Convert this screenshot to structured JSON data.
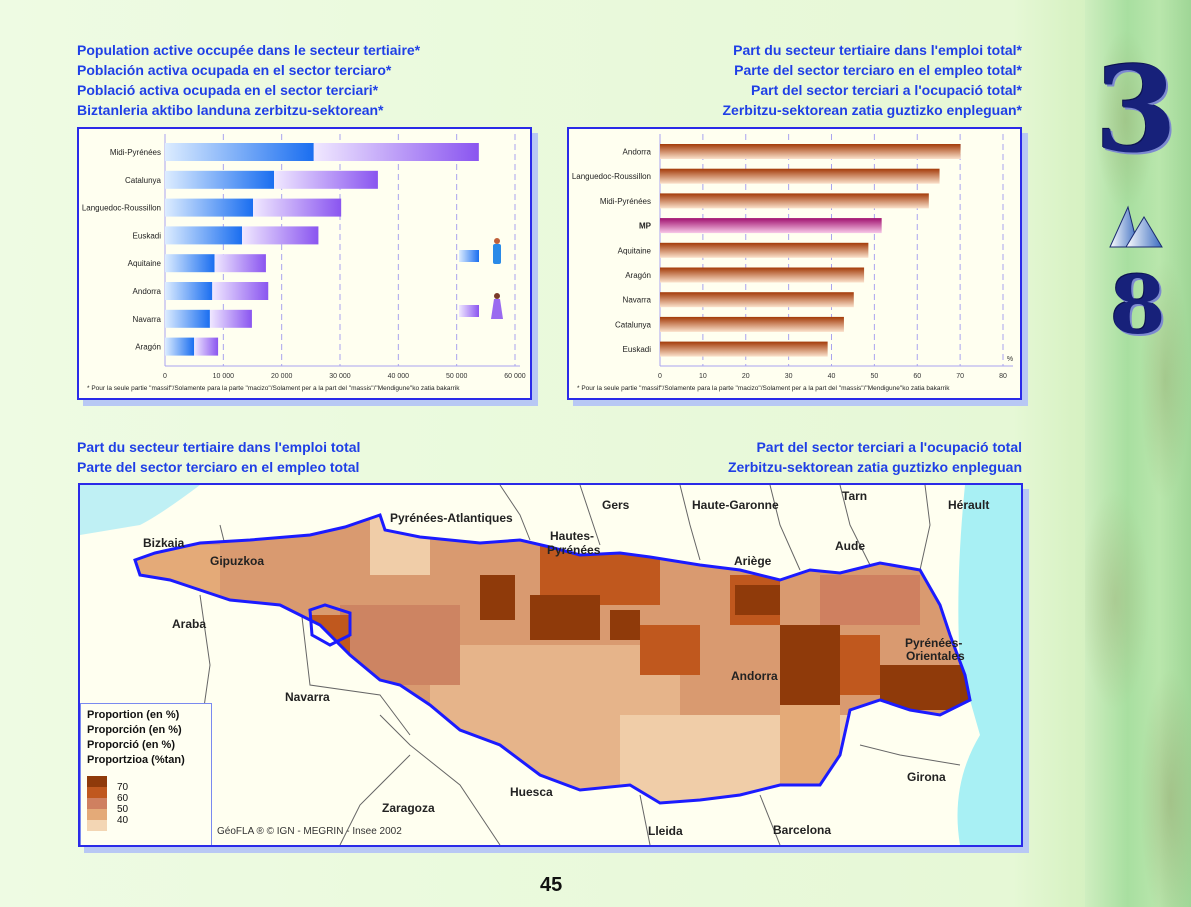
{
  "left_title": [
    "Population active occupée dans le secteur tertiaire*",
    "Población activa ocupada en el sector terciaro*",
    "Població activa ocupada en el sector terciari*",
    "Biztanleria aktibo landuna zerbitzu-sektorean*"
  ],
  "right_title": [
    "Part du secteur tertiaire dans l'emploi total*",
    "Parte del sector terciaro en el empleo total*",
    "Part del sector terciari a l'ocupació total*",
    "Zerbitzu-sektorean zatia guztizko enpleguan*"
  ],
  "footnote": "* Pour la seule partie \"massif\"/Solamente para la parte \"macizo\"/Solament per a la part del \"massis\"/\"Mendigune\"ko zatia bakarrik",
  "chart_data": [
    {
      "type": "bar",
      "orientation": "horizontal",
      "stacked": true,
      "categories": [
        "Midi-Pyrénées",
        "Catalunya",
        "Languedoc-Roussillon",
        "Euskadi",
        "Aquitaine",
        "Andorra",
        "Navarra",
        "Aragón"
      ],
      "series": [
        {
          "icon": "man-icon",
          "color": "#1a6ef0",
          "values": [
            25500,
            18700,
            15100,
            13200,
            8500,
            8100,
            7700,
            5000
          ]
        },
        {
          "icon": "woman-icon",
          "color": "#8a55f0",
          "values": [
            28300,
            17800,
            15100,
            13100,
            8800,
            9600,
            7200,
            4100
          ]
        }
      ],
      "xlim": [
        0,
        60000
      ],
      "ticks": [
        "0",
        "10 000",
        "20 000",
        "30 000",
        "40 000",
        "50 000",
        "60 000"
      ],
      "grid": true
    },
    {
      "type": "bar",
      "orientation": "horizontal",
      "categories": [
        "Andorra",
        "Languedoc-Roussillon",
        "Midi-Pyrénées",
        "MP",
        "Aquitaine",
        "Aragón",
        "Navarra",
        "Catalunya",
        "Euskadi"
      ],
      "values": [
        70.1,
        65.2,
        62.7,
        51.7,
        48.6,
        47.6,
        45.2,
        42.9,
        39.1
      ],
      "highlight": "MP",
      "color": "#a33a08",
      "highlight_color": "#a0106e",
      "xlim": [
        0,
        80
      ],
      "ticks": [
        "0",
        "10",
        "20",
        "30",
        "40",
        "50",
        "60",
        "70",
        "80"
      ],
      "unit": "%",
      "grid": true
    }
  ],
  "map_title_left": [
    "Part du secteur tertiaire dans l'emploi total",
    "Parte del sector terciaro en el empleo total"
  ],
  "map_title_right": [
    "Part del sector terciari a l'ocupació total",
    "Zerbitzu-sektorean zatia guztizko enpleguan"
  ],
  "map": {
    "labels": [
      "Pyrénées-Atlantiques",
      "Gers",
      "Haute-Garonne",
      "Tarn",
      "Hérault",
      "Hautes-",
      "Pyrénées",
      "Bizkaia",
      "Gipuzkoa",
      "Aude",
      "Ariège",
      "Araba",
      "Pyrénées-",
      "Orientales",
      "Andorra",
      "Navarra",
      "Girona",
      "Huesca",
      "Zaragoza",
      "Lleida",
      "Barcelona"
    ],
    "legend_title": [
      "Proportion (en %)",
      "Proporción (en %)",
      "Proporció (en %)",
      "Proportzioa (%tan)"
    ],
    "legend": [
      {
        "label": "70",
        "color": "#8f3a0a"
      },
      {
        "label": "60",
        "color": "#c0581e"
      },
      {
        "label": "50",
        "color": "#cf8060"
      },
      {
        "label": "40",
        "color": "#e4aa78"
      },
      {
        "label": "",
        "color": "#f3d6b4"
      }
    ],
    "credit": "GéoFLA ® © IGN - MEGRIN - Insee 2002"
  },
  "decor": {
    "chapter": "3",
    "section": "8"
  },
  "page_number": "45"
}
